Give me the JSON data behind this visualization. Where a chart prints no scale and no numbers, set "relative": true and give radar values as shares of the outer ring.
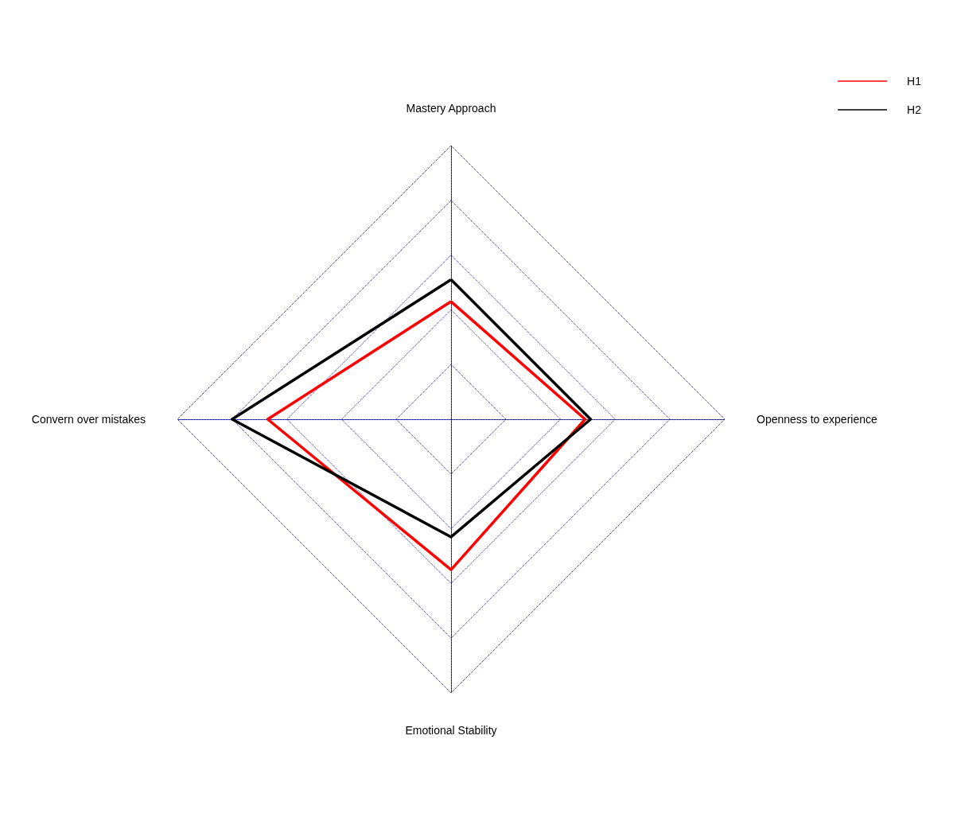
{
  "chart_data": {
    "type": "radar",
    "relative": true,
    "categories": [
      "Mastery Approach",
      "Openness to experience",
      "Emotional Stability",
      "Convern over mistakes"
    ],
    "series": [
      {
        "name": "H1",
        "color": "#ff0000",
        "values": [
          0.43,
          0.49,
          0.55,
          0.67
        ]
      },
      {
        "name": "H2",
        "color": "#000000",
        "values": [
          0.51,
          0.51,
          0.43,
          0.8
        ]
      }
    ],
    "grid": true,
    "legend": "top right",
    "marker": "none",
    "line_style": "solid"
  }
}
